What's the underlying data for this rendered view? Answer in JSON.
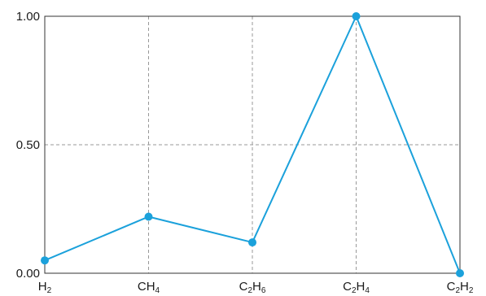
{
  "chart_data": {
    "type": "line",
    "categories": [
      "H2",
      "CH4",
      "C2H6",
      "C2H4",
      "C2H2"
    ],
    "x_tick_labels": [
      {
        "base1": "H",
        "sub1": "2",
        "base2": "",
        "sub2": ""
      },
      {
        "base1": "CH",
        "sub1": "4",
        "base2": "",
        "sub2": ""
      },
      {
        "base1": "C",
        "sub1": "2",
        "base2": "H",
        "sub2": "6"
      },
      {
        "base1": "C",
        "sub1": "2",
        "base2": "H",
        "sub2": "4"
      },
      {
        "base1": "C",
        "sub1": "2",
        "base2": "H",
        "sub2": "2"
      }
    ],
    "series": [
      {
        "values": [
          0.05,
          0.22,
          0.12,
          1.0,
          0.0
        ]
      }
    ],
    "y_ticks": [
      0.0,
      0.5,
      1.0
    ],
    "y_tick_labels": [
      "0.00",
      "0.50",
      "1.00"
    ],
    "ylim": [
      0,
      1
    ],
    "title": "",
    "xlabel": "",
    "ylabel": "",
    "grid": true,
    "grid_style": "dashed",
    "line_color": "#1ba1db",
    "grid_color": "#999999",
    "axis_color": "#333333"
  }
}
